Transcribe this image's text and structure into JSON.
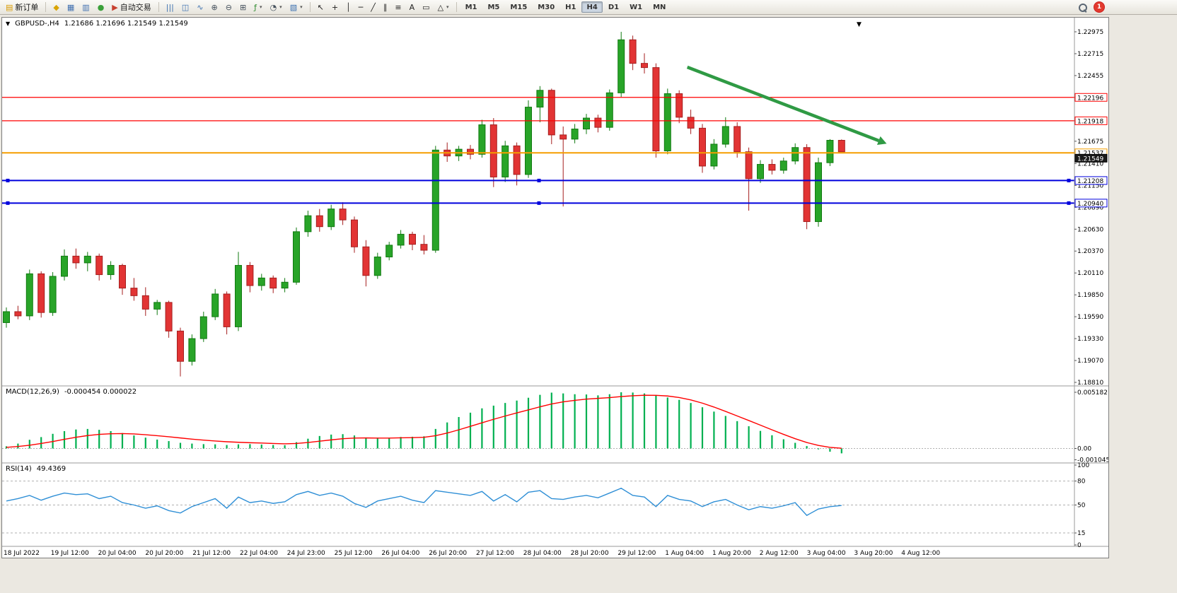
{
  "toolbar": {
    "groups": [
      {
        "items": [
          {
            "name": "new-order-button",
            "icon": "new-order-icon",
            "glyph": "▤",
            "color": "#d99a00",
            "label": "新订单"
          }
        ]
      },
      {
        "items": [
          {
            "name": "alert-button",
            "icon": "alert-icon",
            "glyph": "◆",
            "color": "#d9a400"
          },
          {
            "name": "market-watch-button",
            "icon": "market-watch-icon",
            "glyph": "▦",
            "color": "#3f6fb0"
          },
          {
            "name": "data-window-button",
            "icon": "data-window-icon",
            "glyph": "▥",
            "color": "#3f6fb0"
          },
          {
            "name": "navigator-button",
            "icon": "navigator-icon",
            "glyph": "●",
            "color": "#3aa03a"
          },
          {
            "name": "autotrade-button",
            "icon": "autotrade-play-icon",
            "glyph": "▶",
            "color": "#c8402f",
            "label": "自动交易"
          }
        ]
      },
      {
        "items": [
          {
            "name": "bar-chart-button",
            "icon": "bar-chart-icon",
            "glyph": "|||",
            "color": "#3a6fb0"
          },
          {
            "name": "candlestick-chart-button",
            "icon": "candlestick-icon",
            "glyph": "◫",
            "color": "#3a6fb0"
          },
          {
            "name": "line-chart-button",
            "icon": "line-chart-icon",
            "glyph": "∿",
            "color": "#3a6fb0"
          },
          {
            "name": "zoom-in-button",
            "icon": "zoom-in-icon",
            "glyph": "⊕",
            "color": "#44505c"
          },
          {
            "name": "zoom-out-button",
            "icon": "zoom-out-icon",
            "glyph": "⊖",
            "color": "#44505c"
          },
          {
            "name": "tile-windows-button",
            "icon": "tile-windows-icon",
            "glyph": "⊞",
            "color": "#44505c"
          },
          {
            "name": "indicators-button",
            "icon": "indicators-icon",
            "glyph": "ƒ",
            "color": "#2e8b2e",
            "arrow": true
          },
          {
            "name": "periods-button",
            "icon": "clock-icon",
            "glyph": "◔",
            "color": "#44505c",
            "arrow": true
          },
          {
            "name": "templates-button",
            "icon": "template-icon",
            "glyph": "▧",
            "color": "#3a6fb0",
            "arrow": true
          }
        ]
      },
      {
        "items": [
          {
            "name": "cursor-button",
            "icon": "cursor-icon",
            "glyph": "↖",
            "color": "#222"
          },
          {
            "name": "crosshair-button",
            "icon": "crosshair-icon",
            "glyph": "+",
            "color": "#222"
          },
          {
            "name": "vertical-line-button",
            "icon": "vertical-line-icon",
            "glyph": "│",
            "color": "#222"
          },
          {
            "name": "horizontal-line-button",
            "icon": "horizontal-line-icon",
            "glyph": "─",
            "color": "#222"
          },
          {
            "name": "trendline-button",
            "icon": "trendline-icon",
            "glyph": "╱",
            "color": "#222"
          },
          {
            "name": "channel-button",
            "icon": "channel-icon",
            "glyph": "∥",
            "color": "#222"
          },
          {
            "name": "fibonacci-button",
            "icon": "fibonacci-icon",
            "glyph": "≡",
            "color": "#222"
          },
          {
            "name": "text-button",
            "icon": "text-icon",
            "glyph": "A",
            "color": "#222"
          },
          {
            "name": "text-label-button",
            "icon": "label-icon",
            "glyph": "▭",
            "color": "#222"
          },
          {
            "name": "shapes-button",
            "icon": "shapes-icon",
            "glyph": "△",
            "color": "#222",
            "arrow": true
          }
        ]
      },
      {
        "type": "timeframes"
      }
    ],
    "timeframes": [
      "M1",
      "M5",
      "M15",
      "M30",
      "H1",
      "H4",
      "D1",
      "W1",
      "MN"
    ],
    "active_timeframe": "H4",
    "notification_count": "1"
  },
  "chart": {
    "symbol_title": "GBPUSD-,H4",
    "ohlc_values": "1.21686 1.21696 1.21549 1.21549",
    "collapse_marker": "▼",
    "shift_marker": "▼"
  },
  "chart_data": [
    {
      "type": "candlestick",
      "name": "GBPUSD-,H4",
      "period": "H4",
      "ylim": [
        1.1881,
        1.22975
      ],
      "y_ticks": [
        "1.22975",
        "1.22715",
        "1.22455",
        "1.22196",
        "1.21918",
        "1.21675",
        "1.21410",
        "1.21150",
        "1.20890",
        "1.20630",
        "1.20370",
        "1.20110",
        "1.19850",
        "1.19590",
        "1.19330",
        "1.19070",
        "1.18810"
      ],
      "time_labels": [
        "18 Jul 2022",
        "19 Jul 12:00",
        "20 Jul 04:00",
        "20 Jul 20:00",
        "21 Jul 12:00",
        "22 Jul 04:00",
        "24 Jul 23:00",
        "25 Jul 12:00",
        "26 Jul 04:00",
        "26 Jul 20:00",
        "27 Jul 12:00",
        "28 Jul 04:00",
        "28 Jul 20:00",
        "29 Jul 12:00",
        "1 Aug 04:00",
        "1 Aug 20:00",
        "2 Aug 12:00",
        "3 Aug 04:00",
        "3 Aug 20:00",
        "4 Aug 12:00"
      ],
      "bull_color": "#28a428",
      "bull_stroke": "#117a11",
      "bear_color": "#e23434",
      "bear_stroke": "#a51f1f",
      "candles": [
        [
          1.1952,
          1.197,
          1.1946,
          1.1965
        ],
        [
          1.1965,
          1.1972,
          1.1956,
          1.196
        ],
        [
          1.196,
          1.2015,
          1.1955,
          1.201
        ],
        [
          1.201,
          1.2013,
          1.1958,
          1.1964
        ],
        [
          1.1964,
          1.2012,
          1.196,
          1.2007
        ],
        [
          1.2007,
          1.2039,
          1.2002,
          1.2031
        ],
        [
          1.2031,
          1.204,
          1.2016,
          1.2023
        ],
        [
          1.2023,
          1.2036,
          1.2013,
          1.2031
        ],
        [
          1.2031,
          1.2034,
          1.2002,
          1.2009
        ],
        [
          1.2009,
          1.2025,
          1.2003,
          1.202
        ],
        [
          1.202,
          1.2022,
          1.1985,
          1.1993
        ],
        [
          1.1993,
          1.2005,
          1.1978,
          1.1984
        ],
        [
          1.1984,
          1.1994,
          1.196,
          1.1968
        ],
        [
          1.1968,
          1.1979,
          1.1961,
          1.1976
        ],
        [
          1.1976,
          1.1978,
          1.1934,
          1.1942
        ],
        [
          1.1942,
          1.1946,
          1.1888,
          1.1906
        ],
        [
          1.1906,
          1.1938,
          1.1901,
          1.1933
        ],
        [
          1.1933,
          1.1965,
          1.1929,
          1.1959
        ],
        [
          1.1959,
          1.1992,
          1.1955,
          1.1986
        ],
        [
          1.1986,
          1.1989,
          1.1938,
          1.1947
        ],
        [
          1.1947,
          1.2036,
          1.1942,
          1.202
        ],
        [
          1.202,
          1.2024,
          1.1988,
          1.1996
        ],
        [
          1.1996,
          1.201,
          1.199,
          1.2005
        ],
        [
          1.2005,
          1.2008,
          1.1987,
          1.1993
        ],
        [
          1.1993,
          1.2005,
          1.1988,
          1.2
        ],
        [
          1.2,
          1.2065,
          1.1997,
          1.206
        ],
        [
          1.206,
          1.2085,
          1.2054,
          1.2079
        ],
        [
          1.2079,
          1.2087,
          1.206,
          1.2066
        ],
        [
          1.2066,
          1.2092,
          1.2062,
          1.2087
        ],
        [
          1.2087,
          1.2095,
          1.2068,
          1.2074
        ],
        [
          1.2074,
          1.2078,
          1.2035,
          1.2042
        ],
        [
          1.2042,
          1.205,
          1.1995,
          1.2008
        ],
        [
          1.2008,
          1.2035,
          1.2004,
          1.203
        ],
        [
          1.203,
          1.2048,
          1.2026,
          1.2044
        ],
        [
          1.2044,
          1.2062,
          1.204,
          1.2057
        ],
        [
          1.2057,
          1.206,
          1.2038,
          1.2045
        ],
        [
          1.2045,
          1.2056,
          1.2033,
          1.2038
        ],
        [
          1.2038,
          1.2162,
          1.2035,
          1.2157
        ],
        [
          1.2157,
          1.2166,
          1.2143,
          1.215
        ],
        [
          1.215,
          1.2162,
          1.2144,
          1.2158
        ],
        [
          1.2158,
          1.2163,
          1.2146,
          1.2152
        ],
        [
          1.2152,
          1.2193,
          1.2148,
          1.2187
        ],
        [
          1.2187,
          1.2195,
          1.2113,
          1.2125
        ],
        [
          1.2125,
          1.2168,
          1.2119,
          1.2162
        ],
        [
          1.2162,
          1.2166,
          1.2115,
          1.2128
        ],
        [
          1.2128,
          1.2216,
          1.2124,
          1.2208
        ],
        [
          1.2208,
          1.2233,
          1.219,
          1.2228
        ],
        [
          1.2228,
          1.223,
          1.2164,
          1.2175
        ],
        [
          1.2175,
          1.2185,
          1.209,
          1.217
        ],
        [
          1.217,
          1.2188,
          1.2165,
          1.2182
        ],
        [
          1.2182,
          1.22,
          1.2176,
          1.2195
        ],
        [
          1.2195,
          1.2199,
          1.2178,
          1.2184
        ],
        [
          1.2184,
          1.2229,
          1.218,
          1.2225
        ],
        [
          1.2225,
          1.22975,
          1.222,
          1.2288
        ],
        [
          1.2288,
          1.2293,
          1.2252,
          1.226
        ],
        [
          1.226,
          1.2272,
          1.2248,
          1.2255
        ],
        [
          1.2255,
          1.226,
          1.2148,
          1.2156
        ],
        [
          1.2156,
          1.223,
          1.2152,
          1.2224
        ],
        [
          1.2224,
          1.2228,
          1.2189,
          1.2196
        ],
        [
          1.2196,
          1.2205,
          1.2176,
          1.2183
        ],
        [
          1.2183,
          1.2188,
          1.213,
          1.2138
        ],
        [
          1.2138,
          1.217,
          1.2134,
          1.2164
        ],
        [
          1.2164,
          1.2196,
          1.216,
          1.2185
        ],
        [
          1.2185,
          1.219,
          1.2148,
          1.2155
        ],
        [
          1.2155,
          1.216,
          1.2085,
          1.2123
        ],
        [
          1.2123,
          1.2145,
          1.2118,
          1.214
        ],
        [
          1.214,
          1.2146,
          1.2128,
          1.2133
        ],
        [
          1.2133,
          1.2148,
          1.2129,
          1.2144
        ],
        [
          1.2144,
          1.2165,
          1.214,
          1.216
        ],
        [
          1.216,
          1.2164,
          1.2063,
          1.2072
        ],
        [
          1.2072,
          1.2148,
          1.2066,
          1.2142
        ],
        [
          1.2142,
          1.217,
          1.2138,
          1.21686
        ],
        [
          1.21686,
          1.21696,
          1.21549,
          1.21549
        ]
      ],
      "hlines": [
        {
          "price": 1.22196,
          "color": "#ff0000",
          "label": "1.22196",
          "width": 1.2,
          "handles": false
        },
        {
          "price": 1.21918,
          "color": "#ff0000",
          "label": "1.21918",
          "width": 1.2,
          "handles": false
        },
        {
          "price": 1.21537,
          "color": "#f59e00",
          "label": "1.21537",
          "width": 2,
          "handles": false
        },
        {
          "price": 1.21208,
          "color": "#0000dd",
          "label": "1.21208",
          "width": 2,
          "handles": true
        },
        {
          "price": 1.2094,
          "color": "#0000dd",
          "label": "1.20940",
          "width": 2,
          "handles": true
        }
      ],
      "bid": {
        "price": 1.21549,
        "label": "1.21549"
      },
      "trend_arrow": {
        "from": [
          58.7,
          1.22555
        ],
        "to": [
          75.2,
          1.21682
        ],
        "color": "#2f9a44"
      }
    },
    {
      "type": "bar+line",
      "name": "MACD(12,26,9)",
      "current_values": "-0.000454 0.000022",
      "ylim": [
        -0.001045,
        0.005182
      ],
      "y_ticks": [
        {
          "v": 0.005182,
          "label": "0.005182"
        },
        {
          "v": 0,
          "label": "0.00"
        },
        {
          "v": -0.001045,
          "label": "-0.001045"
        }
      ],
      "histogram_color": "#00b050",
      "signal_color": "#ff0000",
      "histogram": [
        0.0002,
        0.00045,
        0.0008,
        0.00105,
        0.00135,
        0.0016,
        0.00175,
        0.0018,
        0.00172,
        0.0016,
        0.00142,
        0.0012,
        0.001,
        0.00082,
        0.00068,
        0.00052,
        0.00045,
        0.0004,
        0.00038,
        0.00032,
        0.00038,
        0.0004,
        0.00036,
        0.00032,
        0.0003,
        0.00058,
        0.0009,
        0.00115,
        0.00128,
        0.00132,
        0.0012,
        0.001,
        0.00092,
        0.00098,
        0.00106,
        0.00108,
        0.00112,
        0.0018,
        0.0024,
        0.0029,
        0.0033,
        0.0037,
        0.00395,
        0.0042,
        0.00442,
        0.00468,
        0.00495,
        0.00515,
        0.00508,
        0.005,
        0.00498,
        0.0049,
        0.005,
        0.00518,
        0.00516,
        0.00508,
        0.00488,
        0.0047,
        0.00448,
        0.0042,
        0.0038,
        0.0034,
        0.003,
        0.00252,
        0.00205,
        0.00162,
        0.00122,
        0.00085,
        0.00052,
        0.00022,
        -8e-05,
        -0.0003,
        -0.00045
      ],
      "signal": [
        0.0001,
        0.00018,
        0.0003,
        0.00046,
        0.00064,
        0.00084,
        0.00103,
        0.00119,
        0.0013,
        0.00136,
        0.00137,
        0.00134,
        0.00127,
        0.00118,
        0.00108,
        0.00097,
        0.00086,
        0.00077,
        0.00069,
        0.00062,
        0.00057,
        0.00053,
        0.0005,
        0.00046,
        0.00043,
        0.00046,
        0.00055,
        0.00067,
        0.00079,
        0.0009,
        0.00096,
        0.00097,
        0.00096,
        0.00096,
        0.00098,
        0.001,
        0.00103,
        0.00118,
        0.00142,
        0.00172,
        0.00204,
        0.00237,
        0.00269,
        0.00299,
        0.00328,
        0.00356,
        0.00384,
        0.0041,
        0.0043,
        0.00444,
        0.00455,
        0.00462,
        0.00469,
        0.00479,
        0.00486,
        0.00491,
        0.0049,
        0.00484,
        0.0047,
        0.00448,
        0.00418,
        0.00382,
        0.00342,
        0.003,
        0.00258,
        0.00215,
        0.00172,
        0.0013,
        0.0009,
        0.00055,
        0.00028,
        0.0001,
        2e-05
      ]
    },
    {
      "type": "line",
      "name": "RSI(14)",
      "current_value": "49.4369",
      "ylim": [
        0,
        100
      ],
      "levels": [
        80,
        50,
        15
      ],
      "y_ticks": [
        {
          "v": 100,
          "label": "100"
        },
        {
          "v": 80,
          "label": "80"
        },
        {
          "v": 50,
          "label": "50"
        },
        {
          "v": 15,
          "label": "15"
        },
        {
          "v": 0,
          "label": "0"
        }
      ],
      "line_color": "#2f8fd6",
      "values": [
        55,
        58,
        62,
        56,
        61,
        65,
        63,
        64,
        58,
        61,
        53,
        50,
        46,
        49,
        43,
        40,
        48,
        53,
        58,
        46,
        60,
        53,
        55,
        52,
        54,
        63,
        67,
        62,
        65,
        61,
        52,
        47,
        55,
        58,
        61,
        56,
        53,
        68,
        66,
        64,
        62,
        67,
        55,
        63,
        54,
        66,
        68,
        58,
        57,
        60,
        62,
        59,
        65,
        71,
        62,
        60,
        48,
        62,
        57,
        55,
        48,
        54,
        57,
        50,
        44,
        48,
        46,
        49,
        53,
        37,
        45,
        48,
        49.4369
      ]
    }
  ]
}
